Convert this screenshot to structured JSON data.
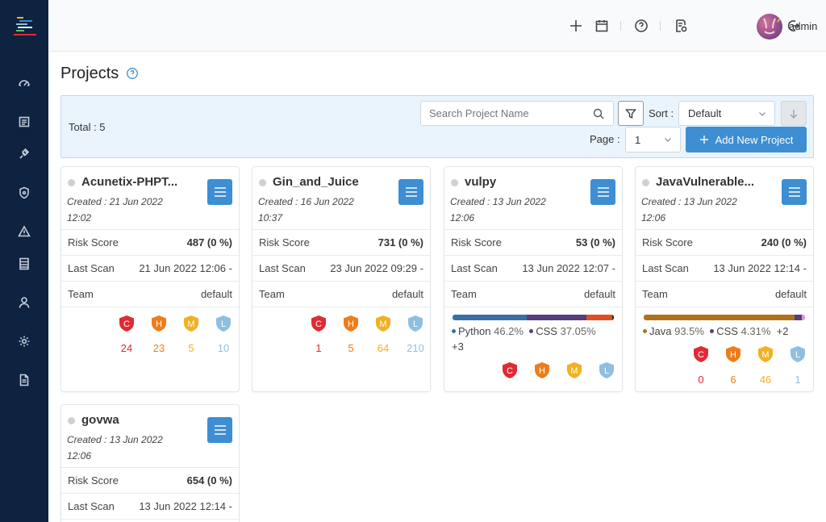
{
  "user": {
    "name": "admin"
  },
  "page": {
    "title": "Projects"
  },
  "toolbar": {
    "total": "Total : 5",
    "search_placeholder": "Search Project Name",
    "sort_label": "Sort :",
    "sort_value": "Default",
    "page_label": "Page :",
    "page_value": "1",
    "add_label": "Add New Project"
  },
  "labels": {
    "risk": "Risk Score",
    "last_scan": "Last Scan",
    "team": "Team",
    "C": "C",
    "H": "H",
    "M": "M",
    "L": "L"
  },
  "colors": {
    "critical": "#e02a35",
    "high": "#ed7d18",
    "medium": "#f2b121",
    "low": "#8fbfe0",
    "primary": "#3d8ed3",
    "sidebar": "#0d2340"
  },
  "projects": [
    {
      "name": "Acunetix-PHPT...",
      "created": "Created : 21 Jun 2022 12:02",
      "risk": "487 (0 %)",
      "last_scan": "21 Jun 2022 12:06",
      "last_scan_suffix": "-",
      "team": "default",
      "c": "24",
      "h": "23",
      "m": "5",
      "l": "10"
    },
    {
      "name": "Gin_and_Juice",
      "created": "Created : 16 Jun 2022 10:37",
      "risk": "731 (0 %)",
      "last_scan": "23 Jun 2022 09:29",
      "last_scan_suffix": "-",
      "team": "default",
      "c": "1",
      "h": "5",
      "m": "64",
      "l": "210"
    },
    {
      "name": "vulpy",
      "created": "Created : 13 Jun 2022 12:06",
      "risk": "53 (0 %)",
      "last_scan": "13 Jun 2022 12:07",
      "last_scan_suffix": "-",
      "team": "default",
      "languages": {
        "items": [
          {
            "name": "Python",
            "pct": "46.2%",
            "fraction": 0.462,
            "color": "#3a6ea5"
          },
          {
            "name": "CSS",
            "pct": "37.05%",
            "fraction": 0.3705,
            "color": "#563d7c"
          }
        ],
        "more": "+3",
        "rest": [
          {
            "fraction": 0.16,
            "color": "#e34c26"
          },
          {
            "fraction": 0.0075,
            "color": "#222222"
          }
        ]
      }
    },
    {
      "name": "JavaVulnerable...",
      "created": "Created : 13 Jun 2022 12:06",
      "risk": "240 (0 %)",
      "last_scan": "13 Jun 2022 12:14",
      "last_scan_suffix": "-",
      "team": "default",
      "c": "0",
      "h": "6",
      "m": "46",
      "l": "1",
      "languages": {
        "items": [
          {
            "name": "Java",
            "pct": "93.5%",
            "fraction": 0.935,
            "color": "#b07219"
          },
          {
            "name": "CSS",
            "pct": "4.31%",
            "fraction": 0.0431,
            "color": "#563d7c"
          }
        ],
        "more": "+2",
        "rest": [
          {
            "fraction": 0.022,
            "color": "#e38ee0"
          }
        ]
      }
    },
    {
      "name": "govwa",
      "created": "Created : 13 Jun 2022 12:06",
      "risk": "654 (0 %)",
      "last_scan": "13 Jun 2022 12:14",
      "last_scan_suffix": "-"
    }
  ],
  "icons": {
    "sidebar": [
      "dashboard-icon",
      "projects-icon",
      "integrations-icon",
      "security-shield-icon",
      "alert-icon",
      "reports-icon",
      "user-icon",
      "settings-gear-icon",
      "document-icon"
    ],
    "topbar": [
      "plus-icon",
      "calendar-icon",
      "help-icon",
      "audit-log-icon",
      "logout-icon"
    ]
  }
}
